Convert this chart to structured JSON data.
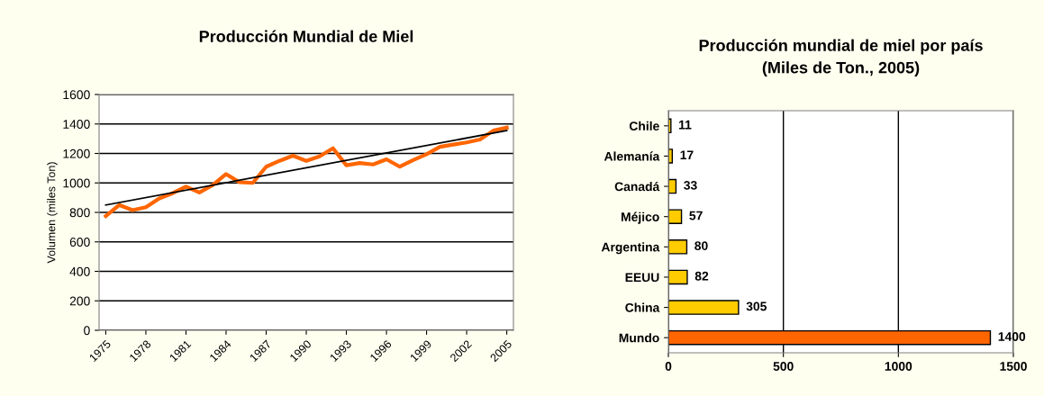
{
  "chart_data": [
    {
      "type": "line",
      "title": "Producción Mundial de Miel",
      "ylabel": "Volumen (miles Ton)",
      "x": [
        1975,
        1976,
        1977,
        1978,
        1979,
        1980,
        1981,
        1982,
        1983,
        1984,
        1985,
        1986,
        1987,
        1988,
        1989,
        1990,
        1991,
        1992,
        1993,
        1994,
        1995,
        1996,
        1997,
        1998,
        1999,
        2000,
        2001,
        2002,
        2003,
        2004,
        2005
      ],
      "series": [
        {
          "color": "#ff6600",
          "values": [
            775,
            850,
            815,
            835,
            895,
            930,
            975,
            935,
            985,
            1060,
            1005,
            1000,
            1110,
            1150,
            1185,
            1150,
            1180,
            1235,
            1120,
            1135,
            1125,
            1160,
            1110,
            1155,
            1195,
            1245,
            1260,
            1275,
            1295,
            1355,
            1375
          ]
        },
        {
          "type": "line",
          "color": "#000000",
          "x": [
            1975,
            2005
          ],
          "values": [
            850,
            1355
          ]
        }
      ],
      "xlim": [
        1974.5,
        2005.5
      ],
      "xticks": [
        1975,
        1978,
        1981,
        1984,
        1987,
        1990,
        1993,
        1996,
        1999,
        2002,
        2005
      ],
      "ylim": [
        0,
        1600
      ],
      "yticks": [
        0,
        200,
        400,
        600,
        800,
        1000,
        1200,
        1400,
        1600
      ],
      "grid": "y",
      "marker": "none",
      "line_style": "solid"
    },
    {
      "type": "bar",
      "orientation": "horizontal",
      "title": "Producción mundial de miel por país\n(Miles de Ton., 2005)",
      "categories": [
        "Chile",
        "Alemanía",
        "Canadá",
        "Méjico",
        "Argentina",
        "EEUU",
        "China",
        "Mundo"
      ],
      "values": [
        11,
        17,
        33,
        57,
        80,
        82,
        305,
        1400
      ],
      "colors": [
        "#ffcc00",
        "#ffcc00",
        "#ffcc00",
        "#ffcc00",
        "#ffcc00",
        "#ffcc00",
        "#ffcc00",
        "#ff6600"
      ],
      "xlim": [
        0,
        1500
      ],
      "xticks": [
        0,
        500,
        1000,
        1500
      ],
      "grid": "x",
      "data_labels": true
    }
  ]
}
